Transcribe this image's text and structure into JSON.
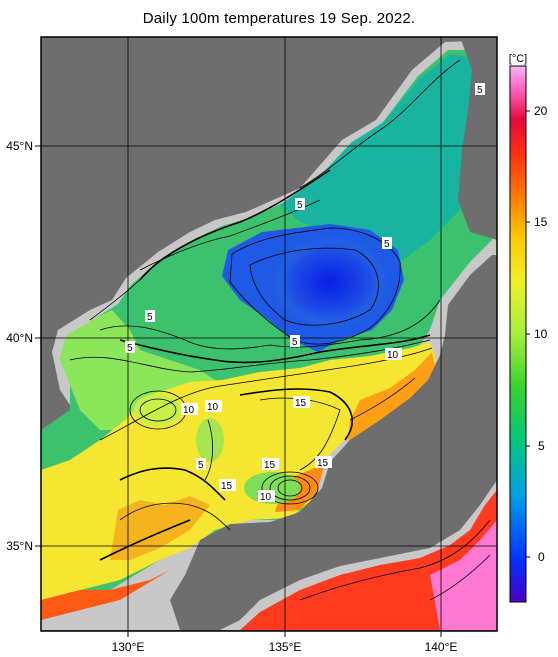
{
  "title": "Daily 100m temperatures 19 Sep. 2022.",
  "axes": {
    "lon_labels": [
      "130°E",
      "135°E",
      "140°E"
    ],
    "lat_labels": [
      "45°N",
      "40°N",
      "35°N"
    ]
  },
  "colorbar": {
    "unit": "[°C]",
    "ticks": [
      "20",
      "15",
      "10",
      "5",
      "0"
    ],
    "range": [
      -2,
      22
    ],
    "colors": [
      "#4b00c8",
      "#0032ff",
      "#00a0e6",
      "#00c87a",
      "#38d22e",
      "#a5ef3c",
      "#f0f028",
      "#ffc800",
      "#ff7800",
      "#ff2d14",
      "#e60a3c",
      "#ff69c8",
      "#ffb4f0"
    ]
  },
  "contour_labels": [
    "5",
    "5",
    "5",
    "5",
    "5",
    "5",
    "10",
    "10",
    "10",
    "15",
    "5",
    "15",
    "15",
    "15",
    "10"
  ],
  "map_colors": {
    "land": "#6e6e6e",
    "shelf": "#c8c8c8",
    "grid": "#000000"
  }
}
